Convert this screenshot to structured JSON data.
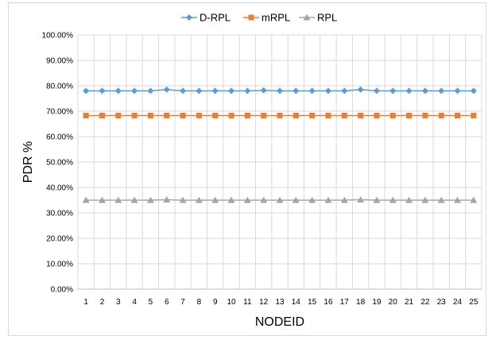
{
  "chart_data": {
    "type": "line",
    "title": "",
    "xlabel": "NODEID",
    "ylabel": "PDR %",
    "categories": [
      "1",
      "2",
      "3",
      "4",
      "5",
      "6",
      "7",
      "8",
      "9",
      "10",
      "11",
      "12",
      "13",
      "14",
      "15",
      "16",
      "17",
      "18",
      "19",
      "20",
      "21",
      "22",
      "23",
      "24",
      "25"
    ],
    "ylim": [
      0,
      1
    ],
    "y_ticks": [
      "0.00%",
      "10.00%",
      "20.00%",
      "30.00%",
      "40.00%",
      "50.00%",
      "60.00%",
      "70.00%",
      "80.00%",
      "90.00%",
      "100.00%"
    ],
    "grid": "horizontal",
    "legend_position": "top",
    "series": [
      {
        "name": "D-RPL",
        "color": "#5b9bd5",
        "marker": "diamond",
        "values": [
          0.78,
          0.78,
          0.78,
          0.78,
          0.78,
          0.785,
          0.78,
          0.78,
          0.78,
          0.78,
          0.78,
          0.782,
          0.78,
          0.78,
          0.78,
          0.78,
          0.78,
          0.785,
          0.78,
          0.78,
          0.78,
          0.78,
          0.78,
          0.78,
          0.78
        ]
      },
      {
        "name": "mRPL",
        "color": "#ed7d31",
        "marker": "square",
        "values": [
          0.683,
          0.683,
          0.683,
          0.683,
          0.683,
          0.683,
          0.683,
          0.683,
          0.683,
          0.683,
          0.683,
          0.683,
          0.683,
          0.683,
          0.683,
          0.683,
          0.683,
          0.683,
          0.683,
          0.683,
          0.683,
          0.683,
          0.683,
          0.683,
          0.683
        ]
      },
      {
        "name": "RPL",
        "color": "#a5a5a5",
        "marker": "triangle",
        "values": [
          0.35,
          0.35,
          0.35,
          0.35,
          0.35,
          0.352,
          0.35,
          0.35,
          0.35,
          0.35,
          0.35,
          0.35,
          0.35,
          0.35,
          0.35,
          0.35,
          0.35,
          0.352,
          0.35,
          0.35,
          0.35,
          0.35,
          0.35,
          0.35,
          0.35
        ]
      }
    ]
  }
}
